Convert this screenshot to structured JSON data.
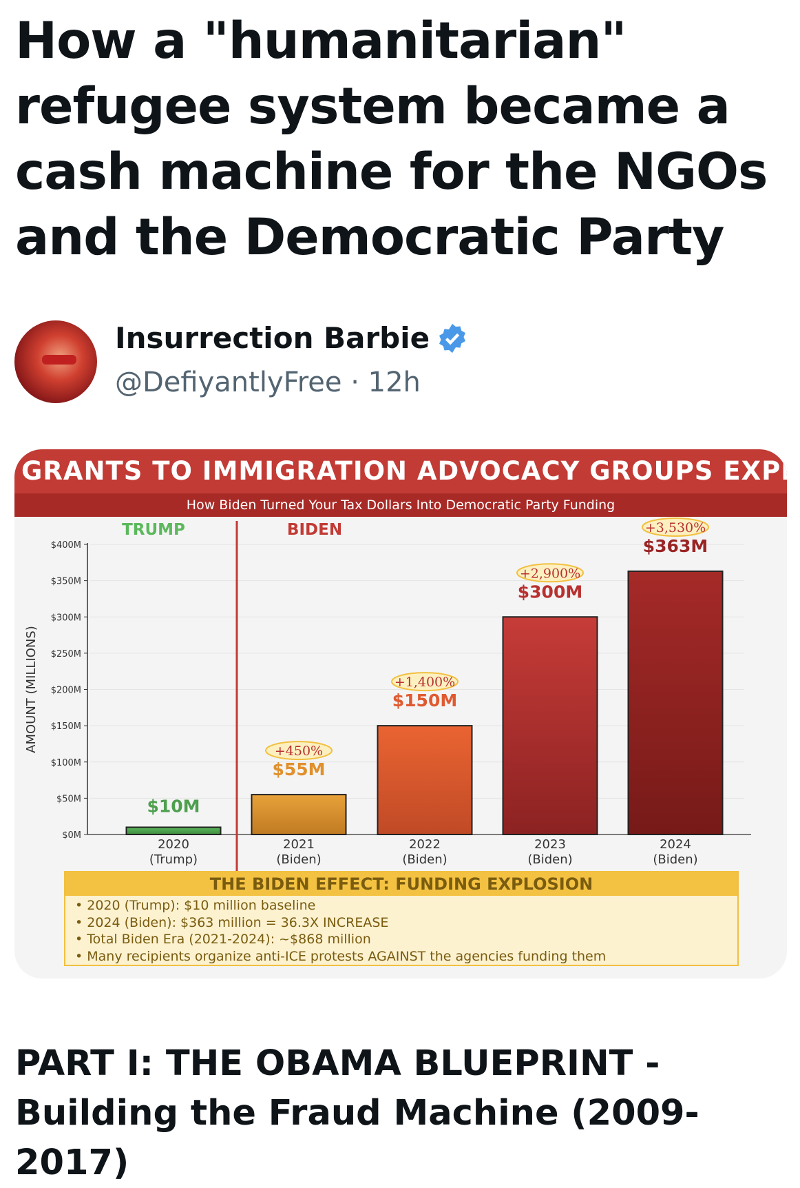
{
  "article": {
    "title": "How a \"humanitarian\" refugee system became a cash machine for the NGOs and the Democratic Party",
    "section_heading_line1": "PART I: THE OBAMA BLUEPRINT -",
    "section_heading_line2": "Building the Fraud Machine (2009-2017)"
  },
  "author": {
    "name": "Insurrection Barbie",
    "handle": "@DefiyantlyFree",
    "separator": "·",
    "time": "12h",
    "verified": true,
    "badge_color": "#4a99e9"
  },
  "chart_data": {
    "type": "bar",
    "title": "GRANTS TO IMMIGRATION ADVOCACY GROUPS EXPLOS",
    "subtitle": "How Biden Turned Your Tax Dollars Into Democratic Party Funding",
    "ylabel": "AMOUNT (MILLIONS)",
    "ylim": [
      0,
      400
    ],
    "yticks": [
      "$0M",
      "$50M",
      "$100M",
      "$150M",
      "$200M",
      "$250M",
      "$300M",
      "$350M",
      "$400M"
    ],
    "era_labels": {
      "trump": "TRUMP",
      "biden": "BIDEN"
    },
    "categories": [
      {
        "year": "2020",
        "era": "(Trump)"
      },
      {
        "year": "2021",
        "era": "(Biden)"
      },
      {
        "year": "2022",
        "era": "(Biden)"
      },
      {
        "year": "2023",
        "era": "(Biden)"
      },
      {
        "year": "2024",
        "era": "(Biden)"
      }
    ],
    "values": [
      10,
      55,
      150,
      300,
      363
    ],
    "value_labels": [
      "$10M",
      "$55M",
      "$150M",
      "$300M",
      "$363M"
    ],
    "pct_labels": [
      "",
      "+450%",
      "+1,400%",
      "+2,900%",
      "+3,530%"
    ],
    "colors": [
      [
        "#5cb85c",
        "#3d8b3d"
      ],
      [
        "#e8a23a",
        "#c07a22"
      ],
      [
        "#ea6432",
        "#c04a26"
      ],
      [
        "#c63c38",
        "#8c2222"
      ],
      [
        "#a52a28",
        "#761a18"
      ]
    ],
    "label_colors": [
      "#4e9f4e",
      "#e0902c",
      "#e05a30",
      "#b83030",
      "#9a2424"
    ]
  },
  "effect_box": {
    "heading": "THE BIDEN EFFECT: FUNDING EXPLOSION",
    "bullets": [
      "• 2020 (Trump): $10 million baseline",
      "• 2024 (Biden): $363 million = 36.3X INCREASE",
      "• Total Biden Era (2021-2024): ~$868 million",
      "• Many recipients organize anti-ICE protests AGAINST the agencies funding them"
    ]
  }
}
